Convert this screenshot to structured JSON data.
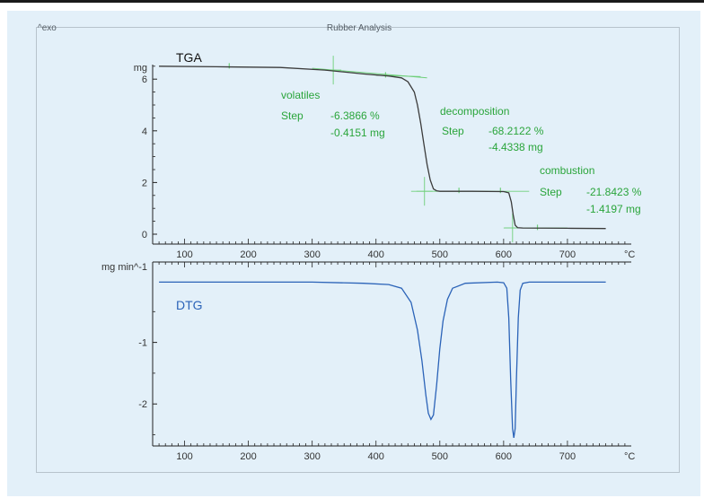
{
  "header": {
    "exo_label": "^exo",
    "title": "Rubber Analysis"
  },
  "colors": {
    "tga": "#3b3b3b",
    "dtg": "#2b63b8",
    "annotation": "#2aa53b",
    "tangent": "#6fcf7a",
    "panel_bg": "#e3f0f9"
  },
  "chart_data": [
    {
      "type": "line",
      "title": "TGA",
      "ylabel": "mg",
      "xlabel": "°C",
      "xlim": [
        50,
        800
      ],
      "ylim": [
        -0.3,
        7.0
      ],
      "x_ticks": [
        100,
        200,
        300,
        400,
        500,
        600,
        700
      ],
      "y_ticks": [
        0,
        2,
        4,
        6
      ],
      "series": [
        {
          "x": [
            60,
            150,
            250,
            320,
            380,
            420,
            440,
            450,
            460,
            465,
            470,
            475,
            480,
            485,
            490,
            495,
            500,
            550,
            600,
            608,
            612,
            615,
            618,
            622,
            630,
            700,
            760
          ],
          "y": [
            6.5,
            6.48,
            6.45,
            6.35,
            6.2,
            6.12,
            6.05,
            5.9,
            5.5,
            5.0,
            4.3,
            3.5,
            2.7,
            2.1,
            1.75,
            1.68,
            1.66,
            1.66,
            1.65,
            1.6,
            1.25,
            0.75,
            0.35,
            0.25,
            0.24,
            0.23,
            0.22
          ]
        }
      ],
      "annotations": [
        {
          "name": "volatiles",
          "label": "volatiles",
          "step_label": "Step",
          "percent": "-6.3866 %",
          "mass": "-0.4151 mg"
        },
        {
          "name": "decomposition",
          "label": "decomposition",
          "step_label": "Step",
          "percent": "-68.2122 %",
          "mass": "-4.4338 mg"
        },
        {
          "name": "combustion",
          "label": "combustion",
          "step_label": "Step",
          "percent": "-21.8423 %",
          "mass": "-1.4197 mg"
        }
      ]
    },
    {
      "type": "line",
      "title": "DTG",
      "ylabel": "mg min^-1",
      "xlabel": "°C",
      "xlim": [
        50,
        800
      ],
      "ylim": [
        -2.7,
        0.2
      ],
      "x_ticks": [
        100,
        200,
        300,
        400,
        500,
        600,
        700
      ],
      "y_ticks": [
        -1,
        -2
      ],
      "series": [
        {
          "x": [
            60,
            300,
            380,
            420,
            440,
            455,
            465,
            472,
            478,
            482,
            486,
            490,
            495,
            500,
            505,
            512,
            520,
            540,
            590,
            600,
            605,
            608,
            611,
            614,
            616,
            618,
            620,
            623,
            626,
            630,
            640,
            760
          ],
          "y": [
            -0.02,
            -0.02,
            -0.04,
            -0.06,
            -0.12,
            -0.35,
            -0.8,
            -1.3,
            -1.85,
            -2.15,
            -2.25,
            -2.18,
            -1.7,
            -1.1,
            -0.65,
            -0.3,
            -0.12,
            -0.04,
            -0.02,
            -0.03,
            -0.12,
            -0.6,
            -1.6,
            -2.4,
            -2.55,
            -2.4,
            -1.6,
            -0.6,
            -0.15,
            -0.04,
            -0.02,
            -0.02
          ]
        }
      ]
    }
  ]
}
